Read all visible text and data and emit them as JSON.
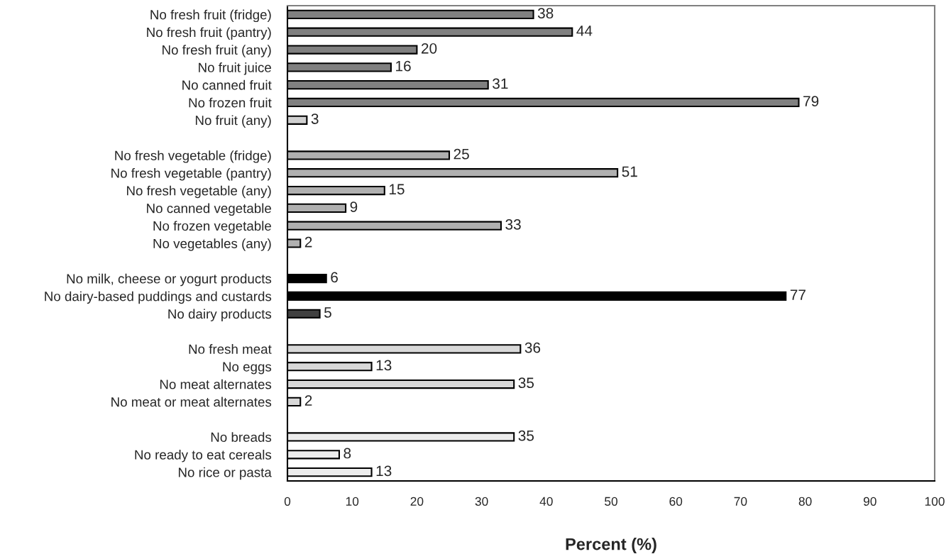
{
  "chart_data": {
    "type": "bar",
    "orientation": "horizontal",
    "xlabel": "Percent (%)",
    "categories": [
      "No fresh fruit (fridge)",
      "No fresh fruit (pantry)",
      "No fresh fruit (any)",
      "No fruit juice",
      "No canned fruit",
      "No frozen fruit",
      "No fruit (any)",
      null,
      "No fresh vegetable (fridge)",
      "No fresh vegetable (pantry)",
      "No fresh vegetable (any)",
      "No canned vegetable",
      "No frozen vegetable",
      "No vegetables (any)",
      null,
      "No milk, cheese or yogurt products",
      "No dairy-based puddings and custards",
      "No dairy products",
      null,
      "No fresh meat",
      "No eggs",
      "No meat alternates",
      "No meat or meat alternates",
      null,
      "No breads",
      "No ready to eat cereals",
      "No rice or pasta"
    ],
    "values": [
      38,
      44,
      20,
      16,
      31,
      79,
      3,
      null,
      25,
      51,
      15,
      9,
      33,
      2,
      null,
      6,
      77,
      5,
      null,
      36,
      13,
      35,
      2,
      null,
      35,
      8,
      13
    ],
    "colors": [
      "#808080",
      "#808080",
      "#808080",
      "#808080",
      "#808080",
      "#808080",
      "#d0d0d0",
      null,
      "#b0b0b0",
      "#b0b0b0",
      "#b0b0b0",
      "#b0b0b0",
      "#b0b0b0",
      "#b0b0b0",
      null,
      "#000000",
      "#000000",
      "#404040",
      null,
      "#d8d8d8",
      "#d8d8d8",
      "#d8d8d8",
      "#d8d8d8",
      null,
      "#ececec",
      "#ececec",
      "#ececec"
    ],
    "xlim": [
      0,
      100
    ],
    "xticks": [
      0,
      10,
      20,
      30,
      40,
      50,
      60,
      70,
      80,
      90,
      100
    ],
    "data_labels": true,
    "grid": false,
    "legend": false
  }
}
